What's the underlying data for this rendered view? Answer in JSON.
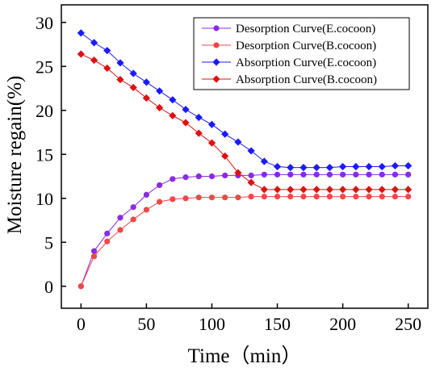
{
  "chart_data": {
    "type": "line",
    "xlabel": "Time（min）",
    "ylabel": "Moisture regain(%)",
    "xlim": [
      -15,
      265
    ],
    "ylim": [
      -2.5,
      32
    ],
    "xticks": [
      0,
      50,
      100,
      150,
      200,
      250
    ],
    "yticks": [
      0,
      5,
      10,
      15,
      20,
      25,
      30
    ],
    "grid": false,
    "legend_position": "top-right",
    "x": [
      0,
      10,
      20,
      30,
      40,
      50,
      60,
      70,
      80,
      90,
      100,
      110,
      120,
      130,
      140,
      150,
      160,
      170,
      180,
      190,
      200,
      210,
      220,
      230,
      240,
      250
    ],
    "series": [
      {
        "name": "Desorption Curve(E.cocoon)",
        "color": "#8a2be2",
        "marker": "circle",
        "values": [
          0,
          4.0,
          6.0,
          7.8,
          9.0,
          10.4,
          11.5,
          12.2,
          12.4,
          12.5,
          12.5,
          12.6,
          12.6,
          12.6,
          12.7,
          12.7,
          12.7,
          12.7,
          12.7,
          12.7,
          12.7,
          12.7,
          12.7,
          12.7,
          12.7,
          12.7
        ]
      },
      {
        "name": "Desorption Curve(B.cocoon)",
        "color": "#f04848",
        "marker": "circle",
        "values": [
          0,
          3.4,
          5.1,
          6.4,
          7.6,
          8.7,
          9.6,
          9.9,
          10.0,
          10.1,
          10.1,
          10.1,
          10.1,
          10.2,
          10.2,
          10.2,
          10.2,
          10.2,
          10.2,
          10.2,
          10.2,
          10.2,
          10.2,
          10.2,
          10.2,
          10.2
        ]
      },
      {
        "name": "Absorption Curve(E.cocoon)",
        "color": "#1a1aff",
        "marker": "diamond",
        "values": [
          28.8,
          27.7,
          26.8,
          25.4,
          24.2,
          23.2,
          22.2,
          21.2,
          20.1,
          19.2,
          18.4,
          17.3,
          16.4,
          15.4,
          14.2,
          13.6,
          13.5,
          13.5,
          13.5,
          13.5,
          13.6,
          13.6,
          13.6,
          13.6,
          13.7,
          13.7
        ]
      },
      {
        "name": "Absorption Curve(B.cocoon)",
        "color": "#e01010",
        "marker": "diamond",
        "values": [
          26.4,
          25.7,
          24.8,
          23.5,
          22.6,
          21.4,
          20.3,
          19.4,
          18.6,
          17.4,
          16.3,
          14.8,
          12.9,
          11.8,
          11.0,
          11.0,
          11.0,
          11.0,
          11.0,
          11.0,
          11.0,
          11.0,
          11.0,
          11.0,
          11.0,
          11.0
        ]
      }
    ]
  }
}
